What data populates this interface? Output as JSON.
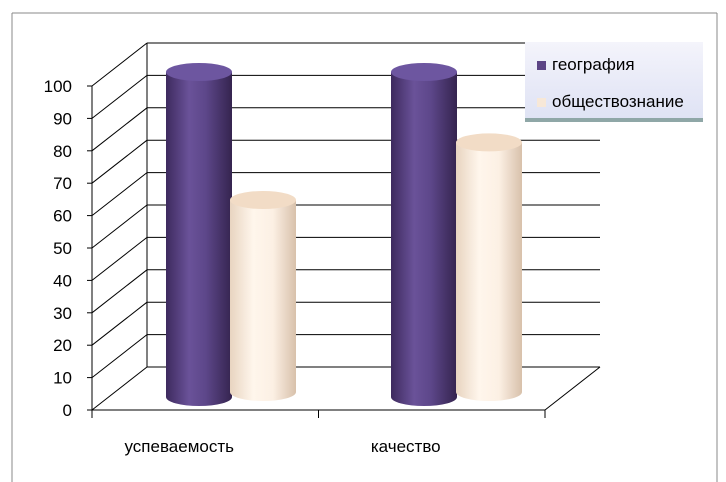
{
  "chart_data": {
    "type": "bar",
    "style": "3d-cylinder",
    "categories": [
      "успеваемость",
      "качество"
    ],
    "series": [
      {
        "name": "география",
        "values": [
          100,
          100
        ],
        "color": "#5c4585"
      },
      {
        "name": "обществознание",
        "values": [
          60,
          78
        ],
        "color": "#f7e8d8"
      }
    ],
    "ylim": [
      0,
      100
    ],
    "yticks": [
      "0",
      "10",
      "20",
      "30",
      "40",
      "50",
      "60",
      "70",
      "80",
      "90",
      "100"
    ],
    "grid": true,
    "legend_position": "top-right"
  }
}
